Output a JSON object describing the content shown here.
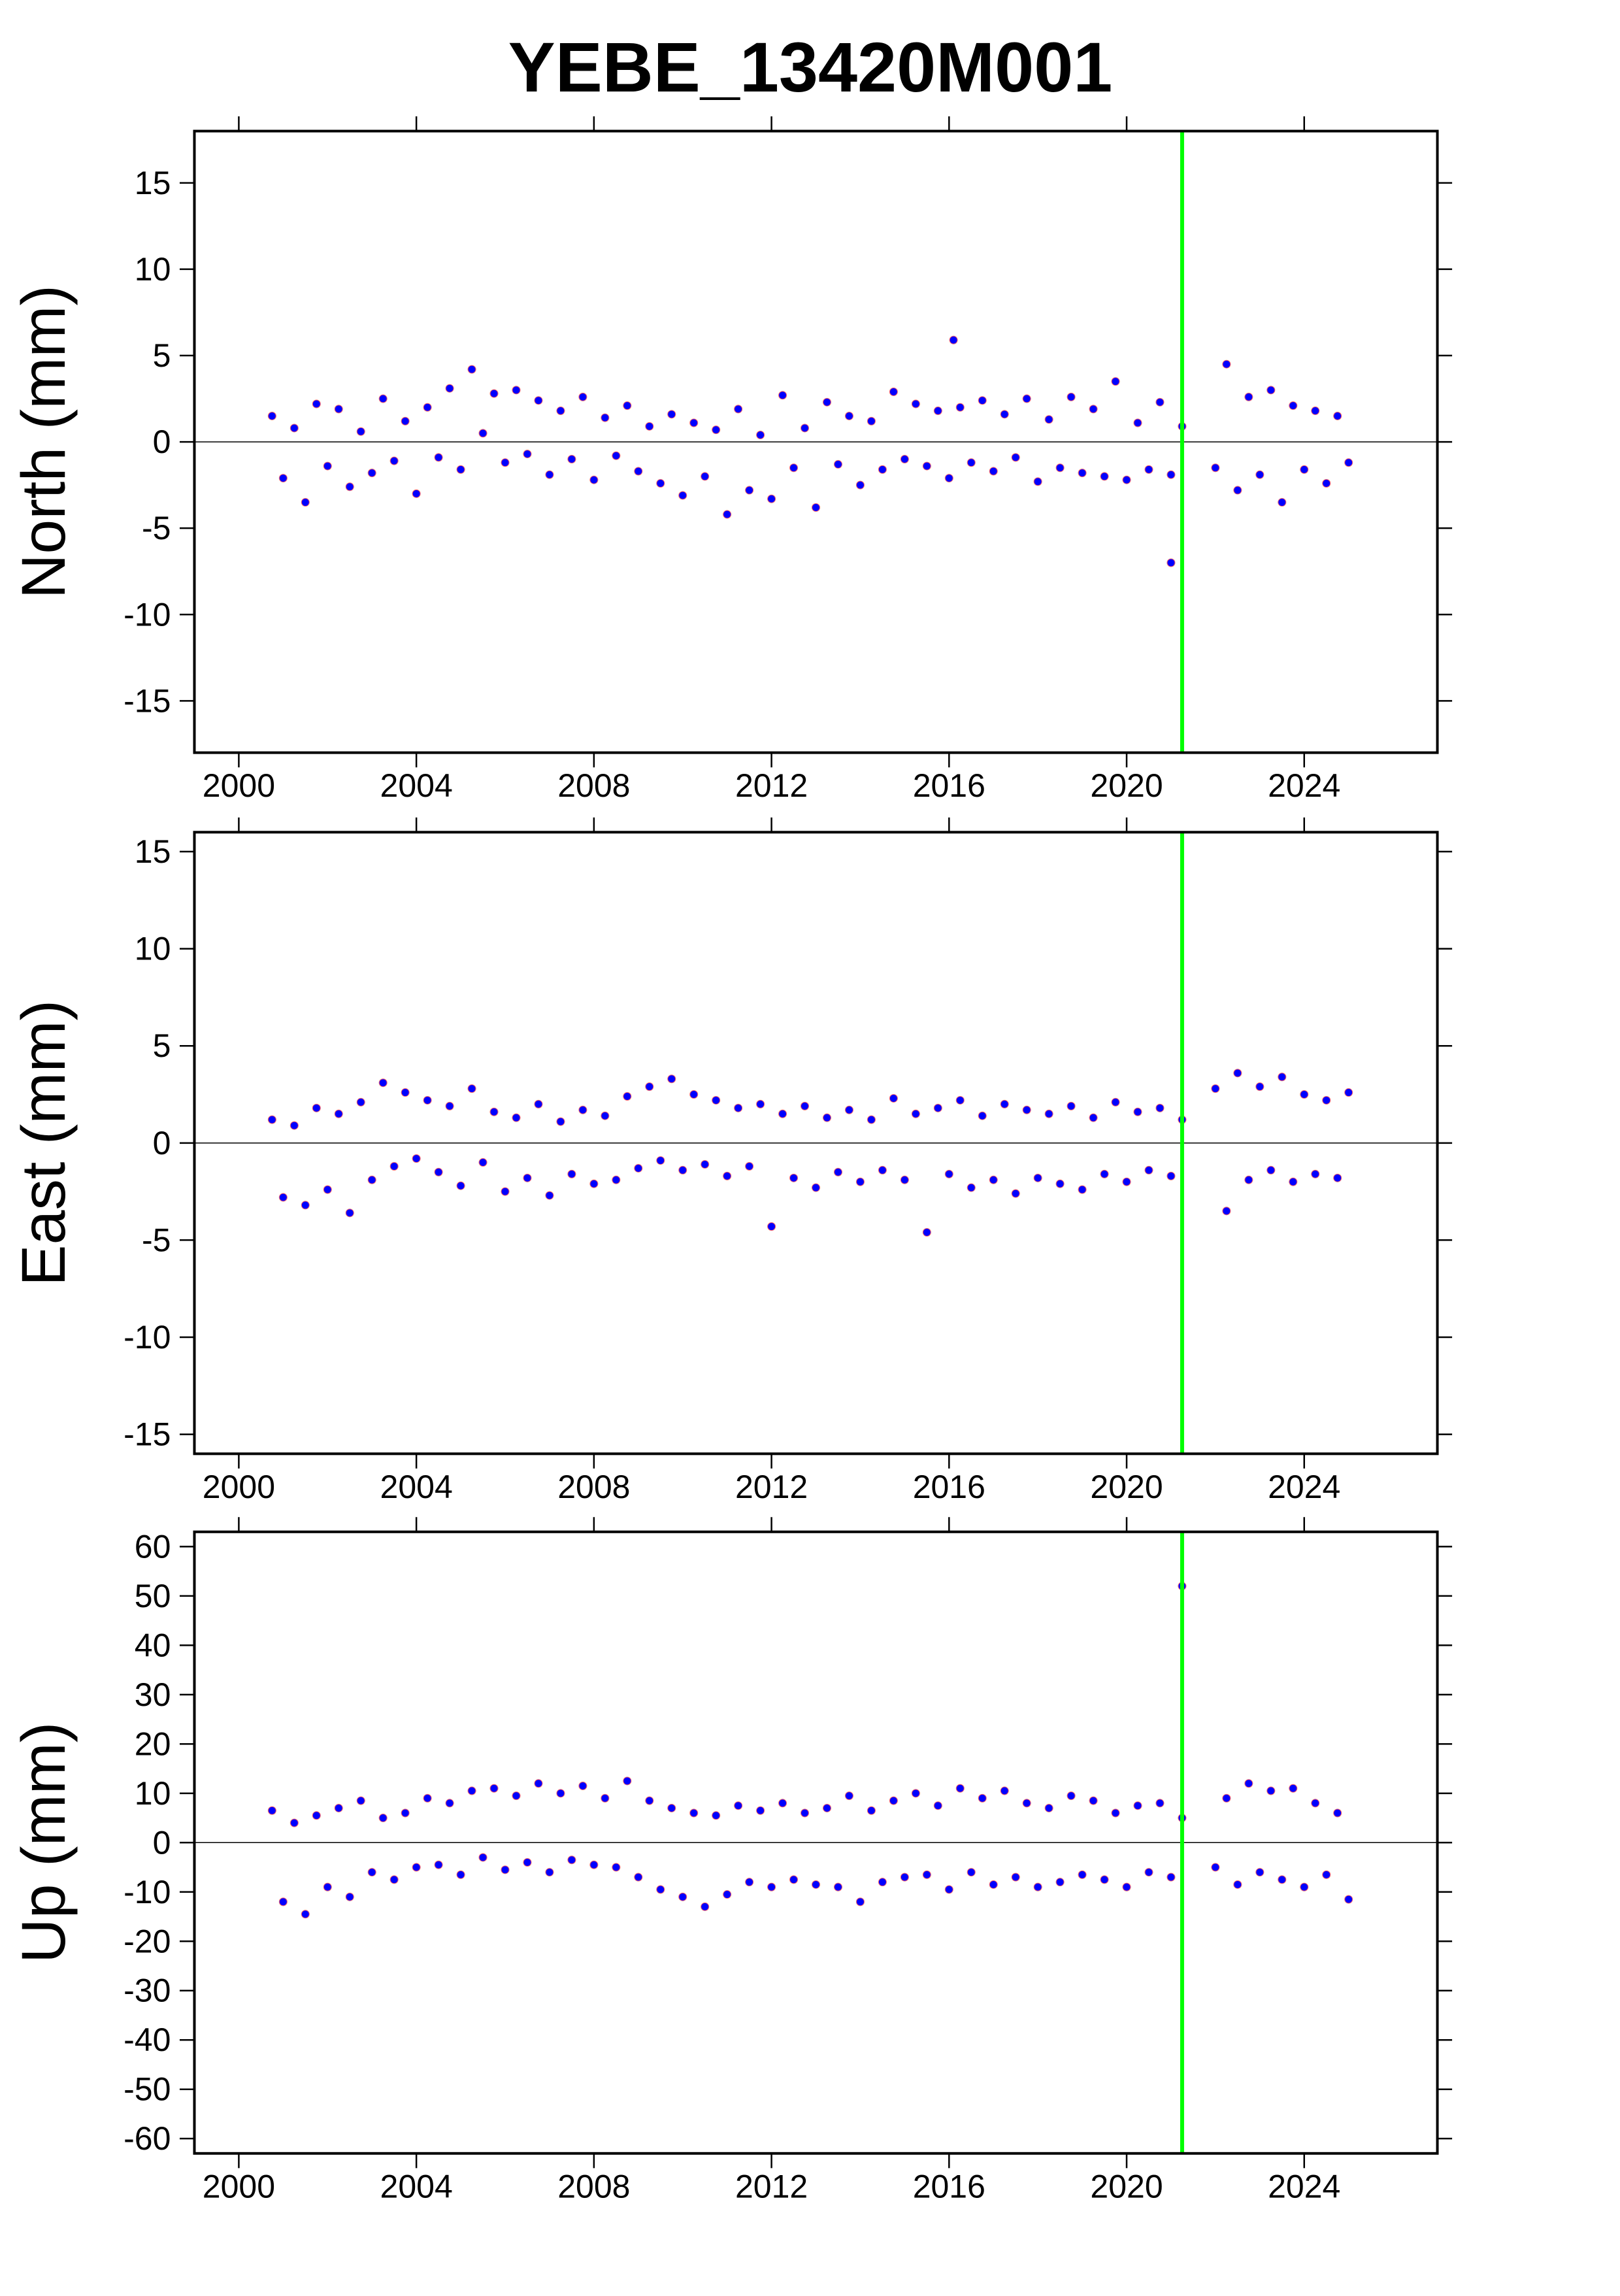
{
  "chart_data": [
    {
      "type": "scatter",
      "title": "YEBE_13420M001",
      "ylabel": "North (mm)",
      "color": "#0000ff",
      "event_x": 2021.25,
      "event_color": "#00ff00",
      "hline": 0,
      "xlim": [
        1999,
        2027
      ],
      "xticks": [
        2000,
        2004,
        2008,
        2012,
        2016,
        2020,
        2024
      ],
      "ylim": [
        -18,
        18
      ],
      "yticks": [
        -15,
        -10,
        -5,
        0,
        5,
        10,
        15
      ],
      "x": [
        2000.75,
        2001,
        2001.25,
        2001.5,
        2001.75,
        2002,
        2002.25,
        2002.5,
        2002.75,
        2003,
        2003.25,
        2003.5,
        2003.75,
        2004,
        2004.25,
        2004.5,
        2004.75,
        2005,
        2005.25,
        2005.5,
        2005.75,
        2006,
        2006.25,
        2006.5,
        2006.75,
        2007,
        2007.25,
        2007.5,
        2007.75,
        2008,
        2008.25,
        2008.5,
        2008.75,
        2009,
        2009.25,
        2009.5,
        2009.75,
        2010,
        2010.25,
        2010.5,
        2010.75,
        2011,
        2011.25,
        2011.5,
        2011.75,
        2012,
        2012.25,
        2012.5,
        2012.75,
        2013,
        2013.25,
        2013.5,
        2013.75,
        2014,
        2014.25,
        2014.5,
        2014.75,
        2015,
        2015.25,
        2015.5,
        2015.75,
        2016,
        2016.25,
        2016.5,
        2016.75,
        2017,
        2017.25,
        2017.5,
        2017.75,
        2018,
        2018.25,
        2018.5,
        2018.75,
        2019,
        2019.25,
        2019.5,
        2019.75,
        2020,
        2020.25,
        2020.5,
        2020.75,
        2021,
        2021.25,
        2022,
        2022.25,
        2022.5,
        2022.75,
        2023,
        2023.25,
        2023.5,
        2023.75,
        2024,
        2024.25,
        2024.5,
        2024.75,
        2025,
        2021,
        2016.1
      ],
      "values": [
        1.5,
        -2.1,
        0.8,
        -3.5,
        2.2,
        -1.4,
        1.9,
        -2.6,
        0.6,
        -1.8,
        2.5,
        -1.1,
        1.2,
        -3.0,
        2.0,
        -0.9,
        3.1,
        -1.6,
        4.2,
        0.5,
        2.8,
        -1.2,
        3.0,
        -0.7,
        2.4,
        -1.9,
        1.8,
        -1.0,
        2.6,
        -2.2,
        1.4,
        -0.8,
        2.1,
        -1.7,
        0.9,
        -2.4,
        1.6,
        -3.1,
        1.1,
        -2.0,
        0.7,
        -4.2,
        1.9,
        -2.8,
        0.4,
        -3.3,
        2.7,
        -1.5,
        0.8,
        -3.8,
        2.3,
        -1.3,
        1.5,
        -2.5,
        1.2,
        -1.6,
        2.9,
        -1.0,
        2.2,
        -1.4,
        1.8,
        -2.1,
        2.0,
        -1.2,
        2.4,
        -1.7,
        1.6,
        -0.9,
        2.5,
        -2.3,
        1.3,
        -1.5,
        2.6,
        -1.8,
        1.9,
        -2.0,
        3.5,
        -2.2,
        1.1,
        -1.6,
        2.3,
        -1.9,
        0.9,
        -1.5,
        4.5,
        -2.8,
        2.6,
        -1.9,
        3.0,
        -3.5,
        2.1,
        -1.6,
        1.8,
        -2.4,
        1.5,
        -1.2,
        -7.0,
        5.9
      ]
    },
    {
      "type": "scatter",
      "ylabel": "East (mm)",
      "color": "#0000ff",
      "event_x": 2021.25,
      "event_color": "#00ff00",
      "hline": 0,
      "xlim": [
        1999,
        2027
      ],
      "xticks": [
        2000,
        2004,
        2008,
        2012,
        2016,
        2020,
        2024
      ],
      "ylim": [
        -16,
        16
      ],
      "yticks": [
        -15,
        -10,
        -5,
        0,
        5,
        10,
        15
      ],
      "x": [
        2000.75,
        2001,
        2001.25,
        2001.5,
        2001.75,
        2002,
        2002.25,
        2002.5,
        2002.75,
        2003,
        2003.25,
        2003.5,
        2003.75,
        2004,
        2004.25,
        2004.5,
        2004.75,
        2005,
        2005.25,
        2005.5,
        2005.75,
        2006,
        2006.25,
        2006.5,
        2006.75,
        2007,
        2007.25,
        2007.5,
        2007.75,
        2008,
        2008.25,
        2008.5,
        2008.75,
        2009,
        2009.25,
        2009.5,
        2009.75,
        2010,
        2010.25,
        2010.5,
        2010.75,
        2011,
        2011.25,
        2011.5,
        2011.75,
        2012,
        2012.25,
        2012.5,
        2012.75,
        2013,
        2013.25,
        2013.5,
        2013.75,
        2014,
        2014.25,
        2014.5,
        2014.75,
        2015,
        2015.25,
        2015.5,
        2015.75,
        2016,
        2016.25,
        2016.5,
        2016.75,
        2017,
        2017.25,
        2017.5,
        2017.75,
        2018,
        2018.25,
        2018.5,
        2018.75,
        2019,
        2019.25,
        2019.5,
        2019.75,
        2020,
        2020.25,
        2020.5,
        2020.75,
        2021,
        2021.25,
        2022,
        2022.25,
        2022.5,
        2022.75,
        2023,
        2023.25,
        2023.5,
        2023.75,
        2024,
        2024.25,
        2024.5,
        2024.75,
        2025
      ],
      "values": [
        1.2,
        -2.8,
        0.9,
        -3.2,
        1.8,
        -2.4,
        1.5,
        -3.6,
        2.1,
        -1.9,
        3.1,
        -1.2,
        2.6,
        -0.8,
        2.2,
        -1.5,
        1.9,
        -2.2,
        2.8,
        -1.0,
        1.6,
        -2.5,
        1.3,
        -1.8,
        2.0,
        -2.7,
        1.1,
        -1.6,
        1.7,
        -2.1,
        1.4,
        -1.9,
        2.4,
        -1.3,
        2.9,
        -0.9,
        3.3,
        -1.4,
        2.5,
        -1.1,
        2.2,
        -1.7,
        1.8,
        -1.2,
        2.0,
        -4.3,
        1.5,
        -1.8,
        1.9,
        -2.3,
        1.3,
        -1.5,
        1.7,
        -2.0,
        1.2,
        -1.4,
        2.3,
        -1.9,
        1.5,
        -4.6,
        1.8,
        -1.6,
        2.2,
        -2.3,
        1.4,
        -1.9,
        2.0,
        -2.6,
        1.7,
        -1.8,
        1.5,
        -2.1,
        1.9,
        -2.4,
        1.3,
        -1.6,
        2.1,
        -2.0,
        1.6,
        -1.4,
        1.8,
        -1.7,
        1.2,
        2.8,
        -3.5,
        3.6,
        -1.9,
        2.9,
        -1.4,
        3.4,
        -2.0,
        2.5,
        -1.6,
        2.2,
        -1.8,
        2.6
      ]
    },
    {
      "type": "scatter",
      "ylabel": "Up (mm)",
      "color": "#0000ff",
      "event_x": 2021.25,
      "event_color": "#00ff00",
      "hline": 0,
      "xlim": [
        1999,
        2027
      ],
      "xticks": [
        2000,
        2004,
        2008,
        2012,
        2016,
        2020,
        2024
      ],
      "ylim": [
        -63,
        63
      ],
      "yticks": [
        -60,
        -50,
        -40,
        -30,
        -20,
        -10,
        0,
        10,
        20,
        30,
        40,
        50,
        60
      ],
      "x": [
        2000.75,
        2001,
        2001.25,
        2001.5,
        2001.75,
        2002,
        2002.25,
        2002.5,
        2002.75,
        2003,
        2003.25,
        2003.5,
        2003.75,
        2004,
        2004.25,
        2004.5,
        2004.75,
        2005,
        2005.25,
        2005.5,
        2005.75,
        2006,
        2006.25,
        2006.5,
        2006.75,
        2007,
        2007.25,
        2007.5,
        2007.75,
        2008,
        2008.25,
        2008.5,
        2008.75,
        2009,
        2009.25,
        2009.5,
        2009.75,
        2010,
        2010.25,
        2010.5,
        2010.75,
        2011,
        2011.25,
        2011.5,
        2011.75,
        2012,
        2012.25,
        2012.5,
        2012.75,
        2013,
        2013.25,
        2013.5,
        2013.75,
        2014,
        2014.25,
        2014.5,
        2014.75,
        2015,
        2015.25,
        2015.5,
        2015.75,
        2016,
        2016.25,
        2016.5,
        2016.75,
        2017,
        2017.25,
        2017.5,
        2017.75,
        2018,
        2018.25,
        2018.5,
        2018.75,
        2019,
        2019.25,
        2019.5,
        2019.75,
        2020,
        2020.25,
        2020.5,
        2020.75,
        2021,
        2021.25,
        2022,
        2022.25,
        2022.5,
        2022.75,
        2023,
        2023.25,
        2023.5,
        2023.75,
        2024,
        2024.25,
        2024.5,
        2024.75,
        2025,
        2021.25
      ],
      "values": [
        6.5,
        -12.0,
        4.0,
        -14.5,
        5.5,
        -9.0,
        7.0,
        -11.0,
        8.5,
        -6.0,
        5.0,
        -7.5,
        6.0,
        -5.0,
        9.0,
        -4.5,
        8.0,
        -6.5,
        10.5,
        -3.0,
        11.0,
        -5.5,
        9.5,
        -4.0,
        12.0,
        -6.0,
        10.0,
        -3.5,
        11.5,
        -4.5,
        9.0,
        -5.0,
        12.5,
        -7.0,
        8.5,
        -9.5,
        7.0,
        -11.0,
        6.0,
        -13.0,
        5.5,
        -10.5,
        7.5,
        -8.0,
        6.5,
        -9.0,
        8.0,
        -7.5,
        6.0,
        -8.5,
        7.0,
        -9.0,
        9.5,
        -12.0,
        6.5,
        -8.0,
        8.5,
        -7.0,
        10.0,
        -6.5,
        7.5,
        -9.5,
        11.0,
        -6.0,
        9.0,
        -8.5,
        10.5,
        -7.0,
        8.0,
        -9.0,
        7.0,
        -8.0,
        9.5,
        -6.5,
        8.5,
        -7.5,
        6.0,
        -9.0,
        7.5,
        -6.0,
        8.0,
        -7.0,
        5.0,
        -5.0,
        9.0,
        -8.5,
        12.0,
        -6.0,
        10.5,
        -7.5,
        11.0,
        -9.0,
        8.0,
        -6.5,
        6.0,
        -11.5,
        52
      ]
    }
  ]
}
